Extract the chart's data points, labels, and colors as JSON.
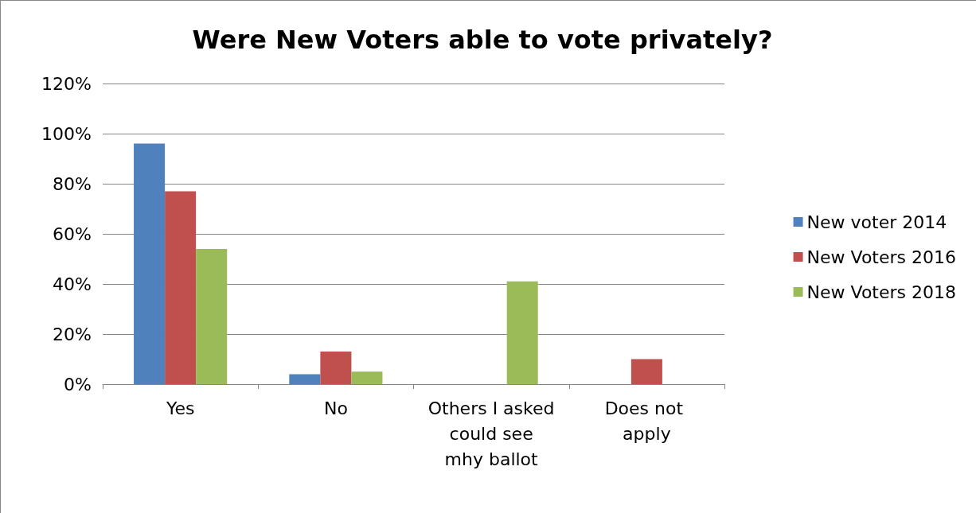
{
  "chart_data": {
    "type": "bar",
    "title": "Were New Voters able to vote privately?",
    "categories": [
      "Yes",
      "No",
      "Others I asked could see mhy ballot",
      "Does not apply"
    ],
    "series": [
      {
        "name": "New voter 2014",
        "color": "#4f81bd",
        "values": [
          96,
          4,
          null,
          null
        ]
      },
      {
        "name": "New Voters 2016",
        "color": "#c0504d",
        "values": [
          77,
          13,
          null,
          10
        ]
      },
      {
        "name": "New Voters 2018",
        "color": "#9bbb59",
        "values": [
          54,
          5,
          41,
          null
        ]
      }
    ],
    "ylim": [
      0,
      120
    ],
    "yticks": [
      {
        "value": 0,
        "label": "0%"
      },
      {
        "value": 20,
        "label": "20%"
      },
      {
        "value": 40,
        "label": "40%"
      },
      {
        "value": 60,
        "label": "60%"
      },
      {
        "value": 80,
        "label": "80%"
      },
      {
        "value": 100,
        "label": "100%"
      },
      {
        "value": 120,
        "label": "120%"
      }
    ],
    "grid": "y",
    "legend": "right"
  }
}
